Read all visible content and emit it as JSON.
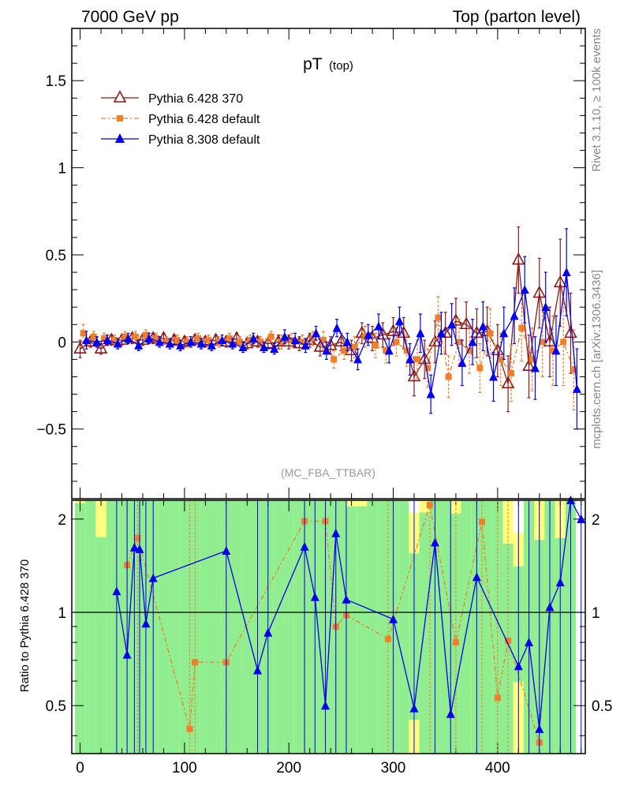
{
  "header": {
    "left": "7000 GeV pp",
    "right": "Top (parton level)"
  },
  "side": {
    "rivet": "Rivet 3.1.10, ≥ 100k events",
    "mcplots": "mcplots.cern.ch [arXiv:1306.3436]"
  },
  "chart_data": [
    {
      "type": "scatter",
      "title": "pT",
      "title_sub": "(top)",
      "watermark": "(MC_FBA_TTBAR)",
      "xlim": [
        -8,
        484
      ],
      "ylim": [
        -0.9,
        1.8
      ],
      "yticks": [
        -0.5,
        0,
        0.5,
        1,
        1.5
      ],
      "ytick_labels": [
        "−0.5",
        "0",
        "0.5",
        "1",
        "1.5"
      ],
      "legend_position": "top-left",
      "series": [
        {
          "name": "Pythia 6.428 370",
          "color": "#8b1a1a",
          "marker": "open-triangle",
          "x": [
            0,
            10,
            20,
            30,
            40,
            50,
            60,
            70,
            80,
            90,
            100,
            110,
            120,
            130,
            140,
            150,
            160,
            170,
            180,
            190,
            200,
            210,
            220,
            230,
            240,
            250,
            260,
            270,
            280,
            290,
            300,
            310,
            320,
            330,
            340,
            350,
            360,
            370,
            380,
            390,
            400,
            410,
            420,
            430,
            440,
            450,
            460,
            470
          ],
          "y": [
            -0.04,
            0.0,
            -0.04,
            0.01,
            0.01,
            0.02,
            0.01,
            0.02,
            0.02,
            0.01,
            0.0,
            0.01,
            0.0,
            0.01,
            0.0,
            0.02,
            -0.01,
            0.0,
            -0.01,
            0.0,
            0.0,
            -0.01,
            0.01,
            -0.03,
            -0.02,
            0.0,
            -0.05,
            0.05,
            0.02,
            0.04,
            0.06,
            0.05,
            -0.2,
            -0.1,
            0.0,
            0.05,
            0.12,
            0.1,
            0.05,
            0.06,
            -0.05,
            -0.24,
            0.47,
            -0.14,
            0.28,
            0.0,
            0.34,
            0.05
          ],
          "err": [
            0.05,
            0.03,
            0.03,
            0.03,
            0.03,
            0.03,
            0.03,
            0.03,
            0.03,
            0.03,
            0.03,
            0.03,
            0.03,
            0.03,
            0.03,
            0.03,
            0.03,
            0.03,
            0.03,
            0.04,
            0.04,
            0.04,
            0.04,
            0.05,
            0.05,
            0.05,
            0.06,
            0.06,
            0.07,
            0.07,
            0.08,
            0.09,
            0.11,
            0.11,
            0.12,
            0.12,
            0.13,
            0.13,
            0.14,
            0.14,
            0.15,
            0.16,
            0.19,
            0.18,
            0.2,
            0.2,
            0.25,
            0.23
          ]
        },
        {
          "name": "Pythia 6.428 default",
          "color": "#f07f2a",
          "marker": "square",
          "x": [
            3,
            13,
            23,
            33,
            43,
            53,
            63,
            73,
            83,
            93,
            103,
            113,
            123,
            133,
            143,
            153,
            163,
            173,
            183,
            193,
            203,
            213,
            223,
            233,
            243,
            253,
            263,
            273,
            283,
            293,
            303,
            313,
            323,
            333,
            343,
            353,
            363,
            373,
            383,
            393,
            403,
            413,
            423,
            433,
            443,
            453,
            463,
            473
          ],
          "y": [
            0.05,
            0.03,
            0.02,
            0.01,
            0.03,
            0.03,
            0.04,
            0.02,
            0.0,
            0.01,
            0.0,
            0.02,
            0.01,
            0.0,
            0.02,
            0.0,
            0.01,
            0.0,
            0.03,
            0.0,
            0.01,
            0.0,
            0.02,
            0.01,
            -0.1,
            -0.05,
            -0.03,
            0.03,
            -0.02,
            -0.05,
            0.0,
            -0.05,
            -0.1,
            -0.15,
            0.14,
            -0.2,
            0.0,
            -0.05,
            -0.15,
            0.05,
            -0.1,
            -0.18,
            0.08,
            -0.1,
            0.0,
            -0.05,
            0.0,
            -0.16
          ],
          "err": [
            0.05,
            0.03,
            0.03,
            0.03,
            0.03,
            0.03,
            0.03,
            0.03,
            0.03,
            0.03,
            0.03,
            0.03,
            0.03,
            0.03,
            0.03,
            0.03,
            0.03,
            0.03,
            0.03,
            0.04,
            0.04,
            0.04,
            0.04,
            0.05,
            0.05,
            0.05,
            0.06,
            0.06,
            0.07,
            0.07,
            0.08,
            0.09,
            0.11,
            0.11,
            0.12,
            0.12,
            0.13,
            0.13,
            0.14,
            0.14,
            0.15,
            0.16,
            0.19,
            0.18,
            0.2,
            0.2,
            0.25,
            0.23
          ]
        },
        {
          "name": "Pythia 8.308 default",
          "color": "#0000ee",
          "marker": "filled-triangle",
          "x": [
            6,
            16,
            26,
            36,
            46,
            56,
            66,
            76,
            86,
            96,
            106,
            116,
            126,
            136,
            146,
            156,
            166,
            176,
            186,
            196,
            206,
            216,
            226,
            236,
            246,
            256,
            266,
            276,
            286,
            296,
            306,
            316,
            326,
            336,
            346,
            356,
            366,
            376,
            386,
            396,
            406,
            416,
            426,
            436,
            446,
            456,
            466,
            476
          ],
          "y": [
            0.01,
            0.0,
            0.01,
            -0.01,
            0.02,
            -0.02,
            0.02,
            0.0,
            -0.01,
            -0.02,
            0.0,
            -0.01,
            -0.02,
            0.01,
            -0.01,
            -0.03,
            0.02,
            -0.03,
            -0.04,
            0.03,
            0.01,
            -0.02,
            0.05,
            -0.05,
            0.08,
            0.0,
            -0.1,
            0.04,
            0.09,
            -0.05,
            0.12,
            -0.1,
            0.05,
            -0.3,
            0.05,
            0.1,
            -0.12,
            0.0,
            0.09,
            -0.2,
            0.05,
            0.15,
            0.3,
            -0.15,
            0.2,
            -0.05,
            0.4,
            -0.27
          ],
          "err": [
            0.05,
            0.03,
            0.03,
            0.03,
            0.03,
            0.03,
            0.03,
            0.03,
            0.03,
            0.03,
            0.03,
            0.03,
            0.03,
            0.03,
            0.03,
            0.03,
            0.03,
            0.03,
            0.03,
            0.04,
            0.04,
            0.04,
            0.04,
            0.05,
            0.05,
            0.05,
            0.06,
            0.06,
            0.07,
            0.07,
            0.08,
            0.09,
            0.11,
            0.11,
            0.12,
            0.12,
            0.13,
            0.13,
            0.14,
            0.14,
            0.15,
            0.16,
            0.19,
            0.18,
            0.2,
            0.2,
            0.25,
            0.23
          ]
        }
      ]
    },
    {
      "type": "line",
      "ylabel": "Ratio to Pythia 6.428 370",
      "xlim": [
        -8,
        484
      ],
      "ylim": [
        0.35,
        2.3
      ],
      "xticks": [
        0,
        100,
        200,
        300,
        400
      ],
      "yticks": [
        0.5,
        1,
        2
      ],
      "ytick_labels": [
        "0.5",
        "1",
        "2"
      ],
      "reference_line": 1,
      "band_colors": {
        "inner": "#90ee90",
        "outer": "#ffff80"
      },
      "series": [
        {
          "name": "Pythia 6.428 default",
          "color": "#f07f2a",
          "x": [
            45,
            55,
            105,
            110,
            140,
            215,
            235,
            245,
            255,
            295,
            335,
            360,
            385,
            400,
            410,
            440
          ],
          "y": [
            1.42,
            1.74,
            0.42,
            0.69,
            0.69,
            1.97,
            1.97,
            0.9,
            0.98,
            0.82,
            2.22,
            0.8,
            1.96,
            0.53,
            0.81,
            0.38
          ]
        },
        {
          "name": "Pythia 8.308 default",
          "color": "#0000ee",
          "x": [
            35,
            45,
            52,
            57,
            63,
            70,
            140,
            170,
            180,
            215,
            225,
            235,
            245,
            255,
            300,
            320,
            340,
            355,
            380,
            420,
            430,
            440,
            450,
            460,
            470,
            480
          ],
          "y": [
            1.17,
            0.73,
            1.62,
            1.6,
            0.92,
            1.29,
            1.58,
            0.65,
            0.86,
            1.63,
            1.12,
            0.5,
            1.8,
            1.1,
            0.95,
            0.49,
            1.68,
            0.47,
            1.3,
            0.67,
            0.8,
            0.42,
            1.04,
            1.25,
            2.5,
            2.0
          ]
        }
      ]
    }
  ]
}
